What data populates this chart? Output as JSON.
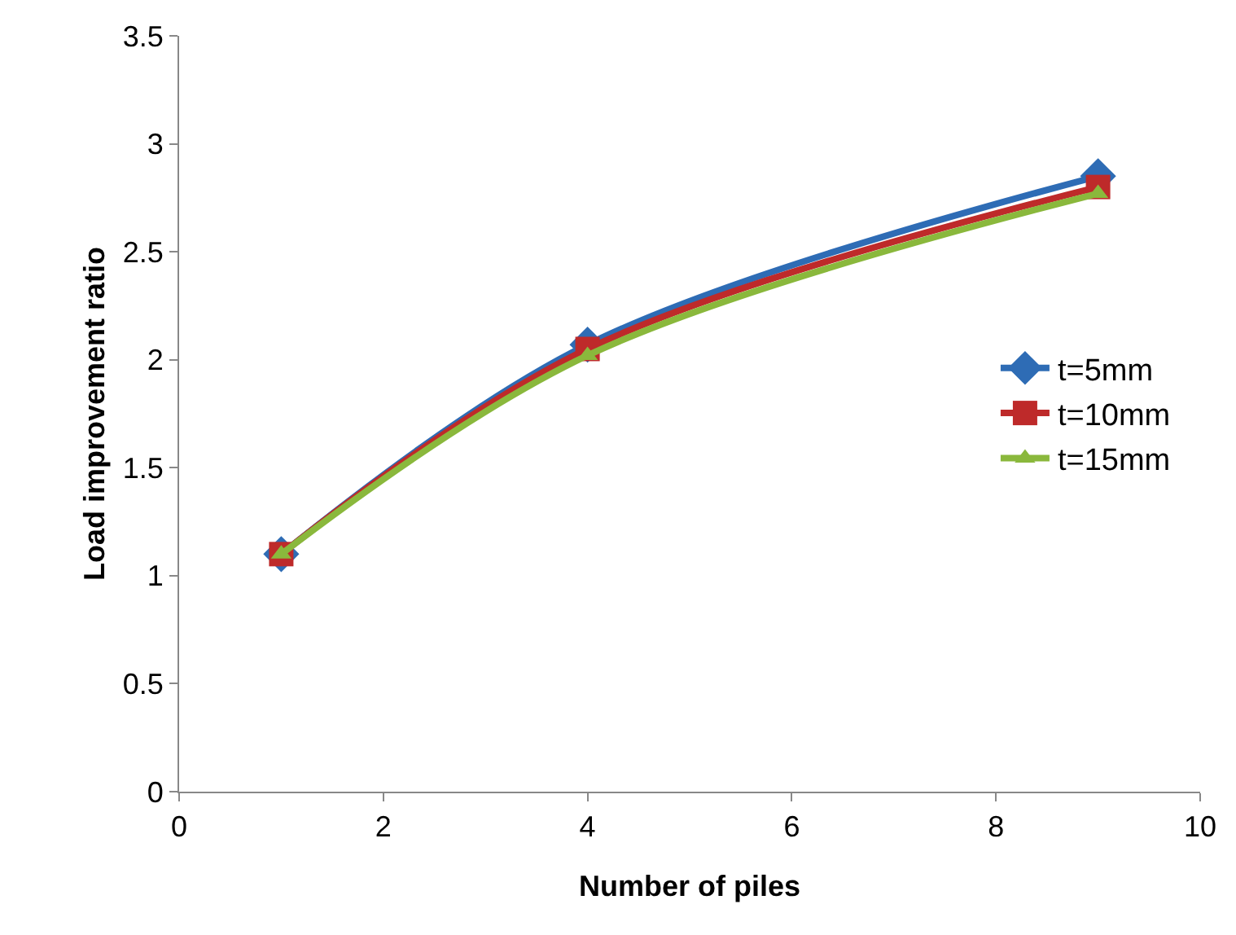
{
  "chart_data": {
    "type": "line",
    "xlabel": "Number of piles",
    "ylabel": "Load improvement ratio",
    "x": [
      1,
      4,
      9
    ],
    "series": [
      {
        "name": "t=5mm",
        "color": "#2e6cb5",
        "values": [
          1.1,
          2.07,
          2.85
        ],
        "marker": "diamond"
      },
      {
        "name": "t=10mm",
        "color": "#be2a2a",
        "values": [
          1.1,
          2.05,
          2.8
        ],
        "marker": "square"
      },
      {
        "name": "t=15mm",
        "color": "#8ab83c",
        "values": [
          1.1,
          2.02,
          2.77
        ],
        "marker": "triangle"
      }
    ],
    "xlim": [
      0,
      10
    ],
    "xticks": [
      0,
      2,
      4,
      6,
      8,
      10
    ],
    "ylim": [
      0,
      3.5
    ],
    "yticks": [
      0,
      0.5,
      1,
      1.5,
      2,
      2.5,
      3,
      3.5
    ],
    "grid": false,
    "legend": "right"
  }
}
